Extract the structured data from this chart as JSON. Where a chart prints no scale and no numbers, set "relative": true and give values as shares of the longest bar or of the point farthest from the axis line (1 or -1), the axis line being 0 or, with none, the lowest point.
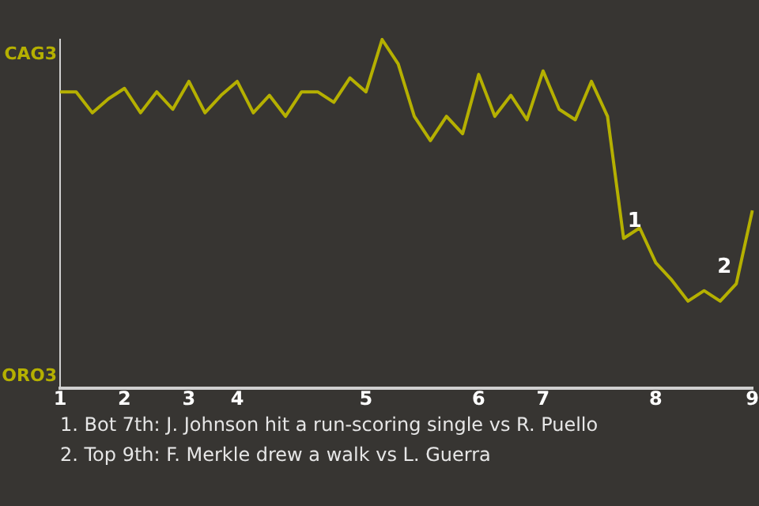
{
  "chart_data": {
    "type": "line",
    "relative": true,
    "annotations": [
      "CAG3",
      "ORO3",
      {
        "text": "1",
        "y": 0.43
      },
      {
        "text": "2",
        "y": 0.3
      },
      "1. Bot 7th: J. Johnson hit a run-scoring single vs R. Puello",
      "2. Top 9th: F. Merkle drew a walk vs L. Guerra"
    ],
    "categories": [
      "1",
      null,
      null,
      null,
      "2",
      null,
      null,
      null,
      "3",
      null,
      null,
      "4",
      null,
      null,
      null,
      null,
      null,
      null,
      null,
      "5",
      null,
      null,
      null,
      null,
      null,
      null,
      "6",
      null,
      null,
      null,
      "7",
      null,
      null,
      null,
      null,
      null,
      null,
      "8",
      null,
      null,
      null,
      null,
      null,
      "9"
    ],
    "series": [
      {
        "color": "#b5b000",
        "values": [
          0.85,
          0.85,
          0.79,
          0.83,
          0.86,
          0.79,
          0.85,
          0.8,
          0.88,
          0.79,
          0.84,
          0.88,
          0.79,
          0.84,
          0.78,
          0.85,
          0.85,
          0.82,
          0.89,
          0.85,
          1,
          0.93,
          0.78,
          0.71,
          0.78,
          0.73,
          0.9,
          0.78,
          0.84,
          0.77,
          0.91,
          0.8,
          0.77,
          0.88,
          0.78,
          0.43,
          0.46,
          0.36,
          0.31,
          0.25,
          0.28,
          0.25,
          0.3,
          0.51
        ]
      }
    ],
    "legend": false,
    "marker": "none",
    "line_style": "solid"
  }
}
